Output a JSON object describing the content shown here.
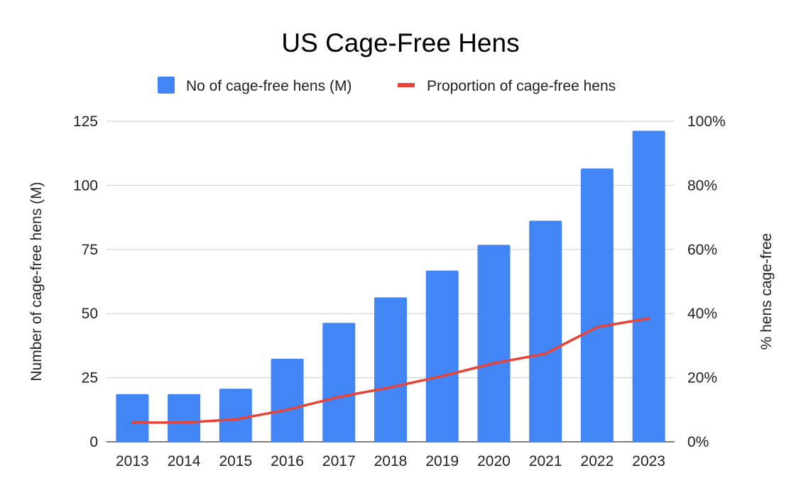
{
  "chart_data": {
    "type": "bar",
    "title": "US Cage-Free Hens",
    "categories": [
      "2013",
      "2014",
      "2015",
      "2016",
      "2017",
      "2018",
      "2019",
      "2020",
      "2021",
      "2022",
      "2023"
    ],
    "series": [
      {
        "name": "No of cage-free hens (M)",
        "type": "bar",
        "axis": "left",
        "color": "#4285F4",
        "values": [
          18.6,
          18.6,
          20.7,
          32.4,
          46.4,
          56.3,
          66.8,
          76.8,
          86.2,
          106.6,
          121.3
        ]
      },
      {
        "name": "Proportion of cage-free hens",
        "type": "line",
        "axis": "right",
        "color": "#EA4335",
        "values": [
          6.0,
          6.0,
          7.0,
          10.0,
          14.0,
          17.0,
          20.5,
          24.5,
          27.5,
          35.8,
          38.5
        ]
      }
    ],
    "y_left": {
      "label": "Number of cage-free hens (M)",
      "ylim": [
        0,
        125
      ],
      "ticks": [
        0,
        25,
        50,
        75,
        100,
        125
      ],
      "tick_labels": [
        "0",
        "25",
        "50",
        "75",
        "100",
        "125"
      ]
    },
    "y_right": {
      "label": "% hens cage-free",
      "ylim": [
        0,
        100
      ],
      "ticks": [
        0,
        20,
        40,
        60,
        80,
        100
      ],
      "tick_labels": [
        "0%",
        "20%",
        "40%",
        "60%",
        "80%",
        "100%"
      ]
    },
    "grid": true,
    "legend_position": "top"
  }
}
